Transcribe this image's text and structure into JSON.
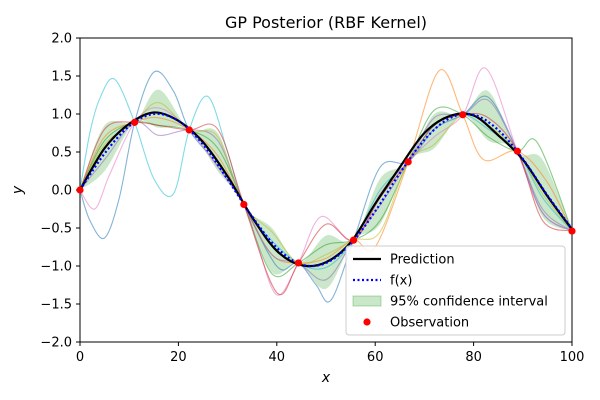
{
  "chart_data": {
    "type": "line",
    "title": "GP Posterior (RBF Kernel)",
    "xlabel": "x",
    "ylabel": "y",
    "xlim": [
      0,
      100
    ],
    "ylim": [
      -2.0,
      2.0
    ],
    "xticks": [
      "0",
      "20",
      "40",
      "60",
      "80",
      "100"
    ],
    "yticks": [
      "2.0",
      "1.5",
      "1.0",
      "0.5",
      "0.0",
      "−0.5",
      "−1.0",
      "−1.5",
      "−2.0"
    ],
    "grid": false,
    "legend_position": "lower-right",
    "observations": {
      "name": "Observation",
      "color": "#ff0000",
      "x": [
        0,
        11.1,
        22.2,
        33.3,
        44.4,
        55.6,
        66.7,
        77.8,
        88.9,
        100
      ],
      "y": [
        0.0,
        0.89,
        0.79,
        -0.19,
        -0.96,
        -0.66,
        0.37,
        0.99,
        0.51,
        -0.54
      ]
    },
    "series": [
      {
        "name": "Prediction",
        "color": "#000000",
        "style": "solid",
        "x": [
          0,
          5,
          10,
          15,
          20,
          25,
          30,
          35,
          40,
          45,
          50,
          55,
          60,
          65,
          70,
          75,
          80,
          85,
          90,
          95,
          100
        ],
        "y": [
          0.0,
          0.55,
          0.87,
          1.02,
          0.91,
          0.63,
          0.18,
          -0.36,
          -0.8,
          -0.99,
          -0.95,
          -0.69,
          -0.18,
          0.3,
          0.75,
          0.97,
          0.98,
          0.72,
          0.4,
          -0.08,
          -0.52
        ]
      },
      {
        "name": "f(x)",
        "color": "#0000ff",
        "style": "dotted",
        "x": [
          0,
          5,
          10,
          15,
          20,
          25,
          30,
          35,
          40,
          45,
          50,
          55,
          60,
          65,
          70,
          75,
          80,
          85,
          90,
          95,
          100
        ],
        "y": [
          0.0,
          0.48,
          0.84,
          1.0,
          0.91,
          0.6,
          0.14,
          -0.35,
          -0.76,
          -0.98,
          -0.96,
          -0.71,
          -0.28,
          0.22,
          0.66,
          0.94,
          0.99,
          0.79,
          0.41,
          -0.07,
          -0.51
        ]
      }
    ],
    "confidence_interval": {
      "name": "95% confidence interval",
      "color": "#2ca02c",
      "x": [
        0,
        5,
        11.1,
        16,
        22.2,
        28,
        33.3,
        39,
        44.4,
        50,
        55.6,
        61,
        66.7,
        72,
        77.8,
        83,
        88.9,
        94,
        100
      ],
      "lower": [
        0.0,
        0.25,
        0.89,
        0.82,
        0.79,
        0.25,
        -0.19,
        -1.08,
        -0.96,
        -1.3,
        -0.66,
        -0.45,
        0.37,
        0.55,
        0.99,
        0.65,
        0.51,
        -0.35,
        -0.54
      ],
      "upper": [
        0.0,
        0.85,
        0.89,
        1.32,
        0.79,
        0.75,
        -0.19,
        -0.5,
        -0.96,
        -0.6,
        -0.66,
        0.15,
        0.37,
        1.0,
        0.99,
        1.3,
        0.51,
        0.4,
        -0.54
      ]
    },
    "samples": [
      {
        "color": "#17becf",
        "x": [
          0,
          2,
          4,
          7,
          11.1,
          15,
          19,
          22.2,
          26,
          30,
          33.3,
          38,
          44.4,
          50,
          55.6,
          61,
          66.7,
          72,
          77.8,
          83,
          88.9,
          94,
          100
        ],
        "y": [
          0.0,
          0.75,
          1.2,
          1.46,
          0.89,
          0.15,
          -0.05,
          0.79,
          1.23,
          0.5,
          -0.19,
          -0.6,
          -0.96,
          -1.02,
          -0.66,
          0.0,
          0.37,
          0.85,
          0.99,
          0.8,
          0.51,
          -0.1,
          -0.54
        ]
      },
      {
        "color": "#1f77b4",
        "x": [
          0,
          2,
          5,
          8,
          11.1,
          15,
          19,
          22.2,
          27,
          33.3,
          38,
          41,
          44.4,
          48,
          51,
          55.6,
          61,
          66.7,
          72,
          77.8,
          83,
          88.9,
          94,
          100
        ],
        "y": [
          0.0,
          -0.4,
          -0.63,
          -0.1,
          0.89,
          1.55,
          1.3,
          0.79,
          0.4,
          -0.19,
          -0.8,
          -1.05,
          -0.96,
          -1.25,
          -1.45,
          -0.66,
          0.3,
          0.37,
          0.8,
          0.99,
          1.22,
          0.51,
          -0.3,
          -0.54
        ]
      },
      {
        "color": "#ff7f0e",
        "x": [
          0,
          5,
          11.1,
          16,
          22.2,
          28,
          33.3,
          39,
          44.4,
          50,
          55.6,
          60,
          66.7,
          73,
          77.8,
          82,
          88.9,
          95,
          100
        ],
        "y": [
          0.0,
          0.7,
          0.89,
          0.95,
          0.79,
          0.45,
          -0.19,
          -0.85,
          -0.96,
          -0.9,
          -0.66,
          -0.75,
          0.37,
          1.57,
          0.99,
          0.4,
          0.51,
          0.1,
          -0.54
        ]
      },
      {
        "color": "#e377c2",
        "x": [
          0,
          3,
          6,
          11.1,
          16,
          22.2,
          28,
          33.3,
          36,
          40,
          44.4,
          49,
          55.6,
          61,
          66.7,
          72,
          77.8,
          82.5,
          88.9,
          94,
          100
        ],
        "y": [
          0.0,
          -0.25,
          0.2,
          0.89,
          1.08,
          0.79,
          0.3,
          -0.19,
          -0.7,
          -1.38,
          -0.96,
          -0.35,
          -0.66,
          -0.05,
          0.37,
          0.7,
          0.99,
          1.6,
          0.51,
          -0.3,
          -0.54
        ]
      },
      {
        "color": "#2ca02c",
        "x": [
          0,
          5,
          11.1,
          16,
          22.2,
          28,
          33.3,
          39,
          44.4,
          50,
          55.6,
          61,
          66.7,
          72,
          77.8,
          83,
          88.9,
          93,
          100
        ],
        "y": [
          0.0,
          0.65,
          0.89,
          0.85,
          0.79,
          0.55,
          -0.19,
          -1.1,
          -0.96,
          -0.72,
          -0.66,
          -0.4,
          0.37,
          1.05,
          0.99,
          0.7,
          0.51,
          0.62,
          -0.54
        ]
      },
      {
        "color": "#9467bd",
        "x": [
          0,
          5,
          11.1,
          16,
          22.2,
          28,
          33.3,
          39,
          44.4,
          50,
          55.6,
          61,
          66.7,
          72,
          77.8,
          83,
          88.9,
          94,
          100
        ],
        "y": [
          0.0,
          0.4,
          0.89,
          0.72,
          0.79,
          0.65,
          -0.19,
          -0.85,
          -0.96,
          -1.18,
          -0.66,
          -0.2,
          0.37,
          0.95,
          0.99,
          1.18,
          0.51,
          -0.25,
          -0.54
        ]
      },
      {
        "color": "#d62728",
        "x": [
          0,
          5,
          11.1,
          16,
          22.2,
          28,
          33.3,
          40,
          44.4,
          50,
          55.6,
          61,
          66.7,
          72,
          77.8,
          83,
          88.9,
          94,
          100
        ],
        "y": [
          0.0,
          0.8,
          0.89,
          0.85,
          0.79,
          0.8,
          -0.19,
          -1.35,
          -0.96,
          -0.45,
          -0.66,
          -0.1,
          0.37,
          0.85,
          0.99,
          0.95,
          0.51,
          -0.4,
          -0.54
        ]
      },
      {
        "color": "#bcbd22",
        "x": [
          0,
          5,
          11.1,
          16,
          22.2,
          28,
          33.3,
          39,
          44.4,
          50,
          55.6,
          61,
          66.7,
          72,
          77.8,
          83,
          88.9,
          94,
          100
        ],
        "y": [
          0.0,
          0.6,
          0.89,
          1.15,
          0.79,
          0.7,
          -0.19,
          -0.55,
          -0.96,
          -0.85,
          -0.66,
          -0.55,
          0.37,
          0.6,
          0.99,
          0.85,
          0.51,
          -0.05,
          -0.54
        ]
      }
    ]
  }
}
